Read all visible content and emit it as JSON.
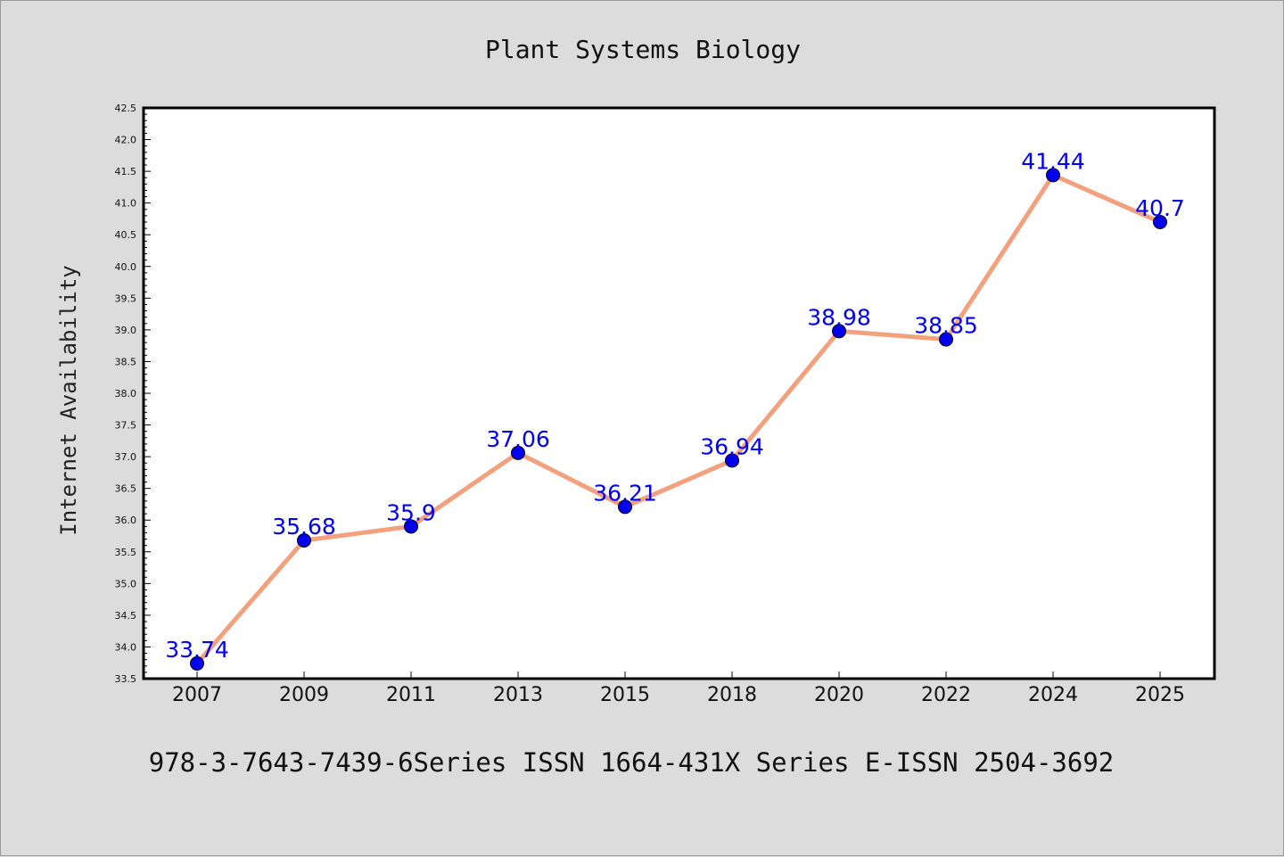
{
  "chart_data": {
    "type": "line",
    "title": "Plant Systems Biology",
    "ylabel": "Internet Availability",
    "xlabel": "",
    "categories": [
      "2007",
      "2009",
      "2011",
      "2013",
      "2015",
      "2018",
      "2020",
      "2022",
      "2024",
      "2025"
    ],
    "series": [
      {
        "values": [
          33.74,
          35.68,
          35.9,
          37.06,
          36.21,
          36.94,
          38.98,
          38.85,
          41.44,
          40.7
        ],
        "labels": [
          "33.74",
          "35.68",
          "35.9",
          "37.06",
          "36.21",
          "36.94",
          "38.98",
          "38.85",
          "41.44",
          "40.7"
        ],
        "line_color": "#f4a07c",
        "marker_color": "#0000ee",
        "label_color": "#0000ee"
      }
    ],
    "ylim": [
      33.5,
      42.5
    ],
    "yticks": [
      "33.5",
      "34.0",
      "34.5",
      "35.0",
      "35.5",
      "36.0",
      "36.5",
      "37.0",
      "37.5",
      "38.0",
      "38.5",
      "39.0",
      "39.5",
      "40.0",
      "40.5",
      "41.0",
      "41.5",
      "42.0",
      "42.5"
    ],
    "grid": false,
    "legend": "none",
    "background": "#dcdcdc",
    "plot_background": "#ffffff"
  },
  "footer": {
    "text": "978-3-7643-7439-6Series ISSN 1664-431X Series E-ISSN 2504-3692"
  }
}
